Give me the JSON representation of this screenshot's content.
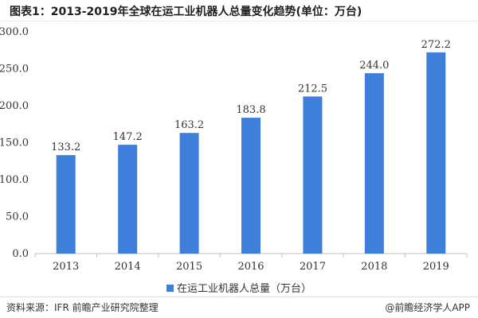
{
  "title": "图表1：2013-2019年全球在运工业机器人总量变化趋势(单位：万台)",
  "source": "资料来源：IFR 前瞻产业研究院整理",
  "credit": "@前瞻经济学人APP",
  "bar_color": "#3f7fdc",
  "chart_data": {
    "type": "bar",
    "categories": [
      "2013",
      "2014",
      "2015",
      "2016",
      "2017",
      "2018",
      "2019"
    ],
    "series": [
      {
        "name": "在运工业机器人总量（万台）",
        "values": [
          133.2,
          147.2,
          163.2,
          183.8,
          212.5,
          244.0,
          272.2
        ]
      }
    ],
    "ylim": [
      0,
      300
    ],
    "yticks": [
      "0.0",
      "50.0",
      "100.0",
      "150.0",
      "200.0",
      "250.0",
      "300.0"
    ],
    "data_labels": [
      "133.2",
      "147.2",
      "163.2",
      "183.8",
      "212.5",
      "244.0",
      "272.2"
    ],
    "grid": false,
    "legend": "bottom-center",
    "xlabel": "",
    "ylabel": ""
  }
}
